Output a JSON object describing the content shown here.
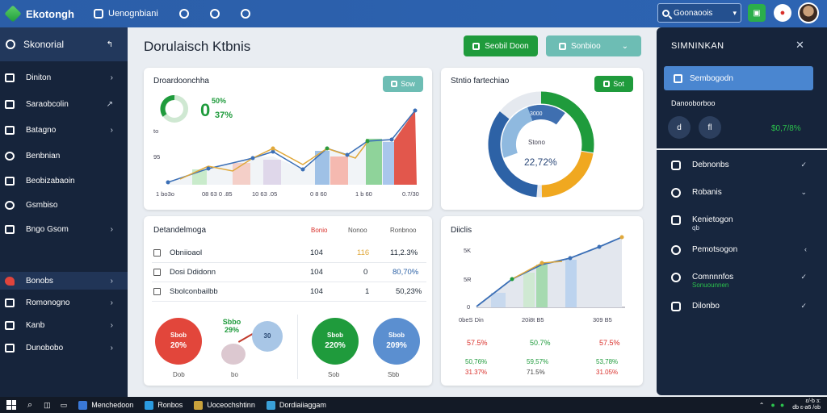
{
  "app": {
    "name": "Ekotongh",
    "nav": [
      "Uenognbiani"
    ]
  },
  "search": {
    "value": "Goonaoois"
  },
  "sidebar": {
    "header": "Skonorial",
    "items": [
      {
        "label": "Diniton"
      },
      {
        "label": "Saraobcolin"
      },
      {
        "label": "Batagno"
      },
      {
        "label": "Benbnian"
      },
      {
        "label": "Beobizabaoin"
      },
      {
        "label": "Gsmbiso"
      },
      {
        "label": "Bngo Gsom"
      },
      {
        "label": "Bonobs"
      },
      {
        "label": "Romonogno"
      },
      {
        "label": "Kanb"
      },
      {
        "label": "Dunobobo"
      }
    ]
  },
  "page": {
    "title": "Dorulaisch Ktbnis"
  },
  "buttons": {
    "primary": "Seobil Doon",
    "secondary": "Sonbioo"
  },
  "card1": {
    "title": "Droardoonchha",
    "pill": "Sow",
    "kpi_big": "0",
    "kpi_top": "50%",
    "kpi_bottom": "37%",
    "ytick1": "to",
    "ytick2": "95",
    "xticks": [
      "1 bo3o",
      "08 63 0 .85",
      "10 63 .05",
      "0 8 60",
      "1 b 60",
      "0.7/30"
    ]
  },
  "card2": {
    "title": "Stntio fartechiao",
    "pill": "Sot",
    "center_top": "3000",
    "center_value": "22,72%",
    "label": "Stono"
  },
  "card3": {
    "title": "Detandelmoga",
    "headers": [
      "Bonio",
      "Nonoo",
      "Ronbnoo"
    ],
    "rows": [
      {
        "name": "Obniioaol",
        "c1": "104",
        "c2": "116",
        "c3": "11,2.3%"
      },
      {
        "name": "Dosi Ddidonn",
        "c1": "104",
        "c2": "0",
        "c3": "80,70%"
      },
      {
        "name": "Sbolconbailbb",
        "c1": "104",
        "c2": "1",
        "c3": "50,23%"
      }
    ],
    "circles": [
      {
        "top": "Sbob",
        "value": "20%",
        "label": "Dob"
      },
      {
        "top": "Sbbo",
        "value": "29%",
        "label": "bo"
      },
      {
        "top": "30",
        "value": "",
        "label": ""
      },
      {
        "top": "Sbob",
        "value": "220%",
        "label": "Sob"
      },
      {
        "top": "Sbob",
        "value": "209%",
        "label": "Sbb"
      }
    ]
  },
  "card4": {
    "title": "Diiclis",
    "yticks": [
      "5K",
      "5R",
      "0"
    ],
    "xticks": [
      "0beS Din",
      "20i8t B5",
      "309 B5"
    ],
    "stats": [
      [
        "57.5%",
        "50.7%",
        "57.5%"
      ],
      [
        "50,76%",
        "59,57%",
        "53,78%"
      ],
      [
        "31.37%",
        "71.5%",
        "31.05%"
      ]
    ]
  },
  "right_panel": {
    "title": "SIMNINKAN",
    "selected": "Sembogodn",
    "sub": "Danooborboo",
    "avatars": [
      "d",
      "fl"
    ],
    "value": "$0,7/8%",
    "items": [
      {
        "label": "Debnonbs",
        "sub": ""
      },
      {
        "label": "Robanis",
        "sub": ""
      },
      {
        "label": "Kenietogon",
        "sub": "qb"
      },
      {
        "label": "Pemotsogon",
        "sub": ""
      },
      {
        "label": "Comnnnfos",
        "sub": "Sonuounnen"
      },
      {
        "label": "Dilonbo",
        "sub": ""
      }
    ]
  },
  "taskbar": {
    "apps": [
      "Menchedoon",
      "Ronbos",
      "Uoceochshtinn",
      "Dordiaiiaggam"
    ],
    "time": "ɛ/-b ɜ:",
    "date": "db ɛ-a6 /ob"
  },
  "colors": {
    "brand": "#2b5ea8",
    "green": "#1f9b3c",
    "teal": "#6dbdb4",
    "sidebar": "#16243b"
  }
}
